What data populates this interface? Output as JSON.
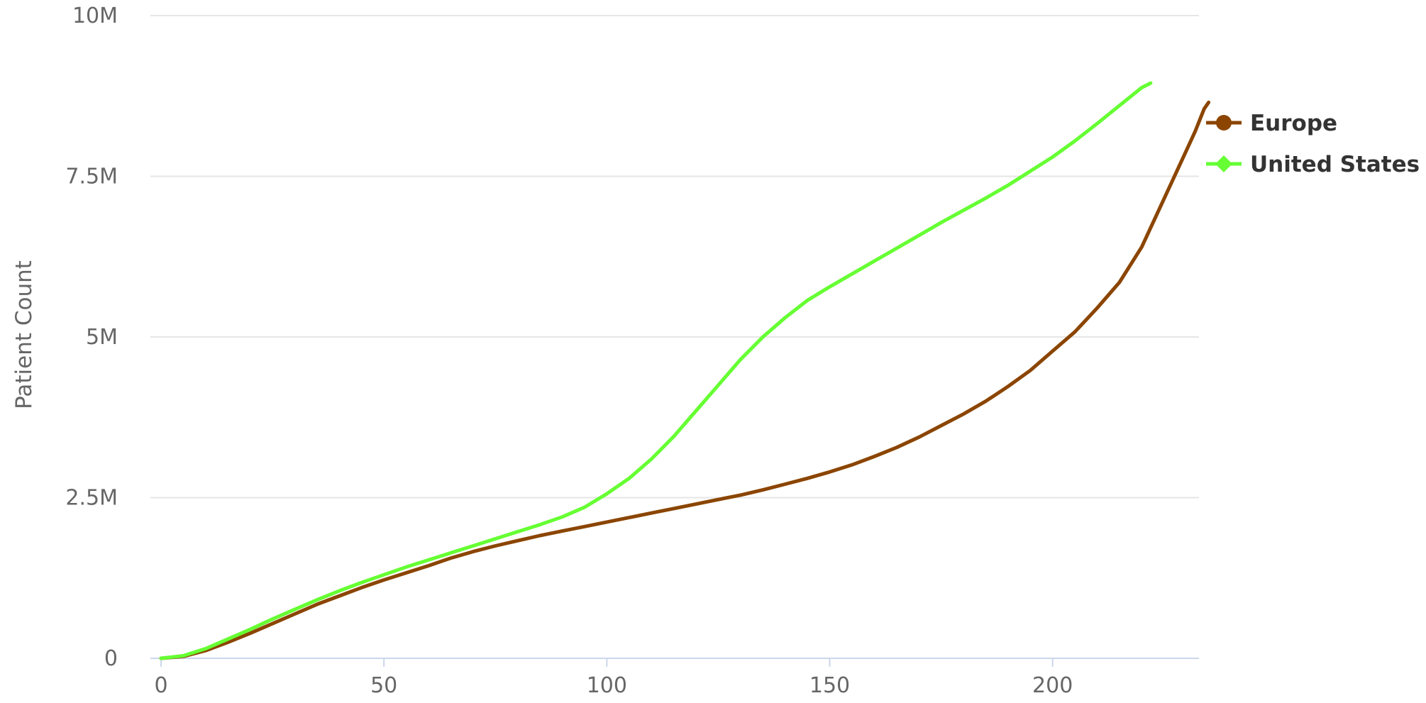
{
  "chart_data": {
    "type": "line",
    "title": "",
    "xlabel": "",
    "ylabel": "Patient Count",
    "xlim": [
      0,
      240
    ],
    "ylim": [
      0,
      10000000
    ],
    "x_ticks": [
      0,
      50,
      100,
      150,
      200
    ],
    "x_tick_labels": [
      "0",
      "50",
      "100",
      "150",
      "200"
    ],
    "y_ticks": [
      0,
      2500000,
      5000000,
      7500000,
      10000000
    ],
    "y_tick_labels": [
      "0",
      "2.5M",
      "5M",
      "7.5M",
      "10M"
    ],
    "grid": "horizontal",
    "legend_position": "right",
    "series": [
      {
        "name": "Europe",
        "color": "#8b4500",
        "marker": "circle",
        "x": [
          0,
          5,
          10,
          15,
          20,
          25,
          30,
          35,
          40,
          45,
          50,
          55,
          60,
          65,
          70,
          75,
          80,
          85,
          90,
          95,
          100,
          105,
          110,
          115,
          120,
          125,
          130,
          135,
          140,
          145,
          150,
          155,
          160,
          165,
          170,
          175,
          180,
          185,
          190,
          195,
          200,
          205,
          210,
          215,
          220,
          225,
          230,
          232,
          234,
          235
        ],
        "values": [
          0,
          30000,
          120000,
          250000,
          390000,
          540000,
          690000,
          840000,
          970000,
          1100000,
          1220000,
          1330000,
          1440000,
          1560000,
          1660000,
          1750000,
          1830000,
          1910000,
          1980000,
          2050000,
          2120000,
          2190000,
          2260000,
          2330000,
          2400000,
          2470000,
          2540000,
          2620000,
          2710000,
          2800000,
          2900000,
          3010000,
          3140000,
          3280000,
          3440000,
          3620000,
          3800000,
          4000000,
          4230000,
          4480000,
          4780000,
          5080000,
          5450000,
          5850000,
          6400000,
          7150000,
          7900000,
          8200000,
          8550000,
          8650000
        ]
      },
      {
        "name": "United States",
        "color": "#66ff33",
        "marker": "diamond",
        "x": [
          0,
          5,
          10,
          15,
          20,
          25,
          30,
          35,
          40,
          45,
          50,
          55,
          60,
          65,
          70,
          75,
          80,
          85,
          90,
          95,
          100,
          105,
          110,
          115,
          120,
          125,
          130,
          135,
          140,
          145,
          150,
          155,
          160,
          165,
          170,
          175,
          180,
          185,
          190,
          195,
          200,
          205,
          210,
          215,
          220,
          222
        ],
        "values": [
          0,
          40000,
          150000,
          300000,
          450000,
          610000,
          760000,
          910000,
          1050000,
          1180000,
          1300000,
          1420000,
          1530000,
          1640000,
          1750000,
          1860000,
          1970000,
          2080000,
          2200000,
          2350000,
          2560000,
          2800000,
          3100000,
          3450000,
          3850000,
          4250000,
          4650000,
          5000000,
          5300000,
          5570000,
          5780000,
          5980000,
          6180000,
          6380000,
          6580000,
          6780000,
          6970000,
          7160000,
          7360000,
          7580000,
          7800000,
          8050000,
          8320000,
          8600000,
          8880000,
          8950000
        ]
      }
    ]
  }
}
